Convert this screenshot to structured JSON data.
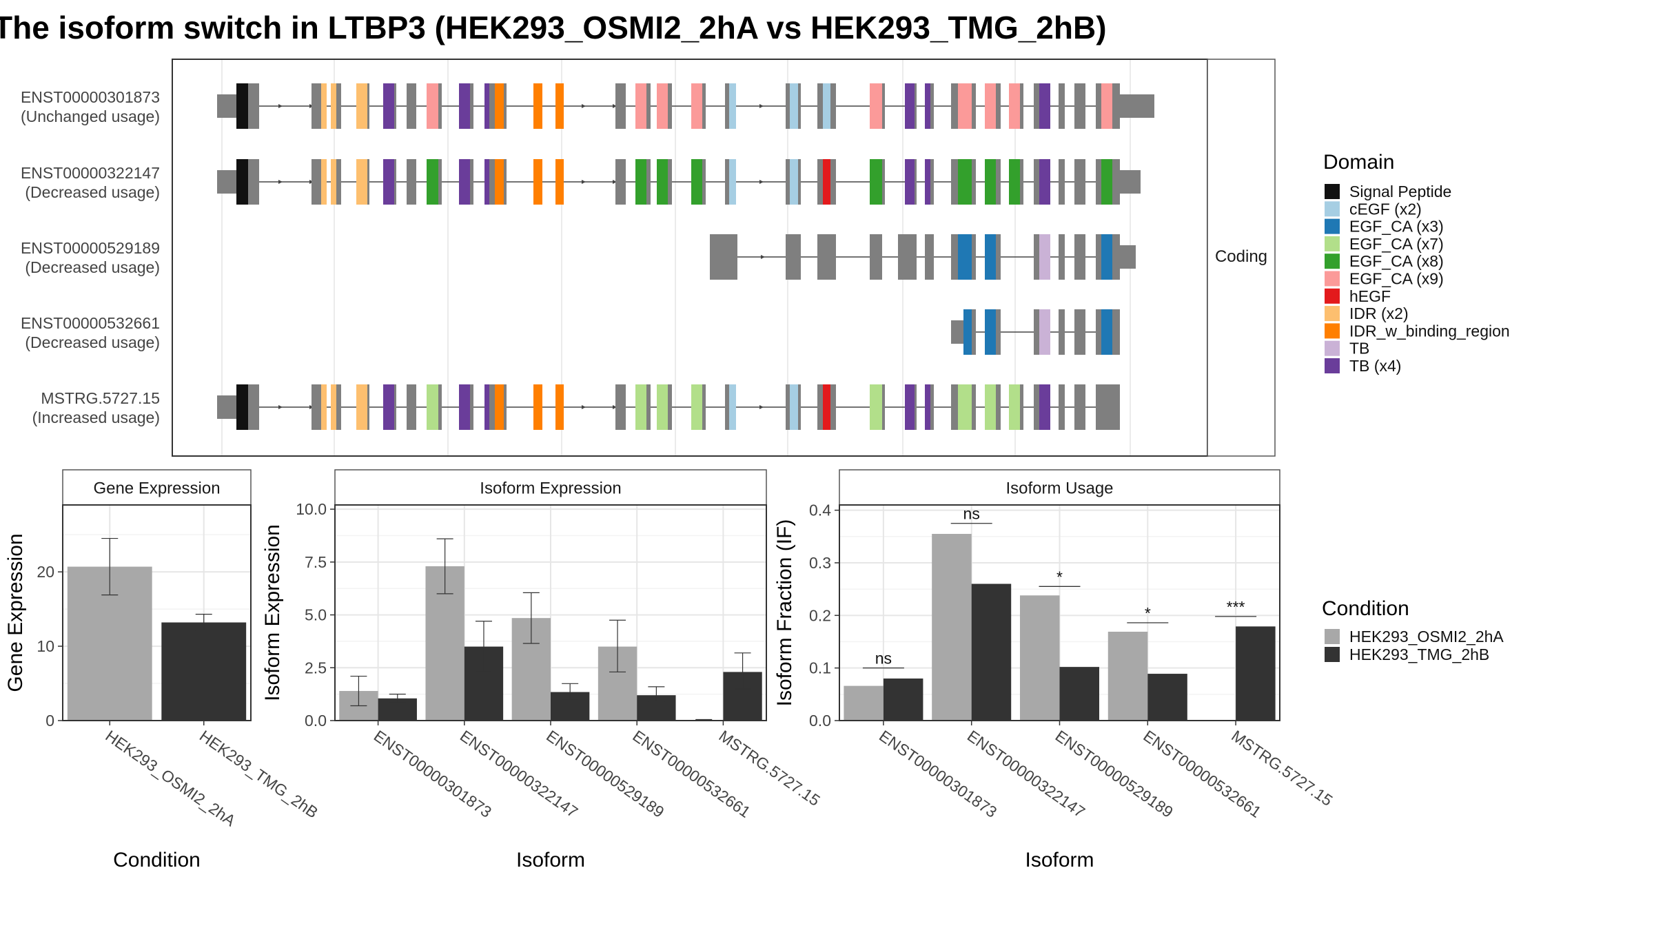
{
  "title": "The isoform switch in LTBP3 (HEK293_OSMI2_2hA vs HEK293_TMG_2hB)",
  "colors": {
    "intron_line": "#444444",
    "utr": "#7f7f7f",
    "cond_a": "#a8a8a8",
    "cond_b": "#333333"
  },
  "structure_panel": {
    "facet_label": "Coding",
    "transcripts": [
      {
        "id": "ENST00000301873",
        "usage": "(Unchanged usage)"
      },
      {
        "id": "ENST00000322147",
        "usage": "(Decreased usage)"
      },
      {
        "id": "ENST00000529189",
        "usage": "(Decreased usage)"
      },
      {
        "id": "ENST00000532661",
        "usage": "(Decreased usage)"
      },
      {
        "id": "MSTRG.5727.15",
        "usage": "(Increased usage)"
      }
    ],
    "legend": {
      "title": "Domain",
      "items": [
        {
          "label": "Signal Peptide",
          "color": "#111111"
        },
        {
          "label": "cEGF (x2)",
          "color": "#a6cee3"
        },
        {
          "label": "EGF_CA (x3)",
          "color": "#1f78b4"
        },
        {
          "label": "EGF_CA (x7)",
          "color": "#b2df8a"
        },
        {
          "label": "EGF_CA (x8)",
          "color": "#33a02c"
        },
        {
          "label": "EGF_CA (x9)",
          "color": "#fb9a99"
        },
        {
          "label": "hEGF",
          "color": "#e31a1c"
        },
        {
          "label": "IDR (x2)",
          "color": "#fdbf6f"
        },
        {
          "label": "IDR_w_binding_region",
          "color": "#ff7f00"
        },
        {
          "label": "TB",
          "color": "#cab2d6"
        },
        {
          "label": "TB (x4)",
          "color": "#6a3d9a"
        }
      ]
    }
  },
  "condition_legend": {
    "title": "Condition",
    "items": [
      {
        "label": "HEK293_OSMI2_2hA",
        "color": "#a8a8a8"
      },
      {
        "label": "HEK293_TMG_2hB",
        "color": "#333333"
      }
    ]
  },
  "chart_data": [
    {
      "type": "bar",
      "title": "Gene Expression",
      "xlabel": "Condition",
      "ylabel": "Gene Expression",
      "ylim": [
        0,
        29
      ],
      "yticks": [
        0,
        10,
        20
      ],
      "categories": [
        "HEK293_OSMI2_2hA",
        "HEK293_TMG_2hB"
      ],
      "values": [
        20.7,
        13.2
      ],
      "errors": [
        [
          16.9,
          24.5
        ],
        [
          12.1,
          14.3
        ]
      ],
      "colors": [
        "#a8a8a8",
        "#333333"
      ]
    },
    {
      "type": "bar",
      "title": "Isoform Expression",
      "xlabel": "Isoform",
      "ylabel": "Isoform Expression",
      "ylim": [
        0,
        10.2
      ],
      "yticks": [
        "0.0",
        "2.5",
        "5.0",
        "7.5",
        "10.0"
      ],
      "categories": [
        "ENST00000301873",
        "ENST00000322147",
        "ENST00000529189",
        "ENST00000532661",
        "MSTRG.5727.15"
      ],
      "series": [
        {
          "name": "HEK293_OSMI2_2hA",
          "values": [
            1.4,
            7.3,
            4.85,
            3.5,
            0.03
          ],
          "errors": [
            [
              0.7,
              2.1
            ],
            [
              6.0,
              8.6
            ],
            [
              3.65,
              6.05
            ],
            [
              2.3,
              4.75
            ],
            [
              0,
              0.05
            ]
          ]
        },
        {
          "name": "HEK293_TMG_2hB",
          "values": [
            1.05,
            3.5,
            1.35,
            1.2,
            2.3
          ],
          "errors": [
            [
              0.85,
              1.25
            ],
            [
              2.3,
              4.7
            ],
            [
              1.0,
              1.75
            ],
            [
              0.9,
              1.6
            ],
            [
              1.5,
              3.2
            ]
          ]
        }
      ]
    },
    {
      "type": "bar",
      "title": "Isoform Usage",
      "xlabel": "Isoform",
      "ylabel": "Isoform Fraction (IF)",
      "ylim": [
        0,
        0.41
      ],
      "yticks": [
        "0.0",
        "0.1",
        "0.2",
        "0.3",
        "0.4"
      ],
      "categories": [
        "ENST00000301873",
        "ENST00000322147",
        "ENST00000529189",
        "ENST00000532661",
        "MSTRG.5727.15"
      ],
      "series": [
        {
          "name": "HEK293_OSMI2_2hA",
          "values": [
            0.066,
            0.355,
            0.238,
            0.169,
            0.0
          ]
        },
        {
          "name": "HEK293_TMG_2hB",
          "values": [
            0.08,
            0.26,
            0.102,
            0.089,
            0.179
          ]
        }
      ],
      "significance": [
        "ns",
        "ns",
        "*",
        "*",
        "***"
      ],
      "significance_y": [
        0.1,
        0.375,
        0.255,
        0.186,
        0.198
      ]
    }
  ]
}
